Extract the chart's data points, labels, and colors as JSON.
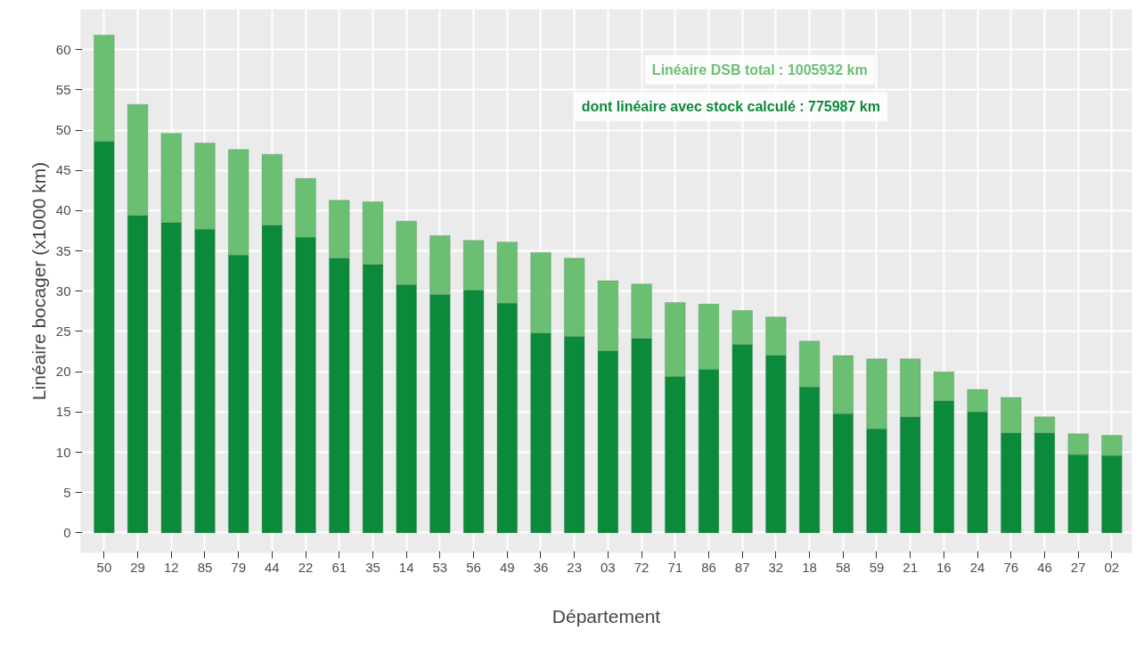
{
  "chart_data": {
    "type": "bar",
    "stacked": true,
    "xlabel": "Département",
    "ylabel": "Linéaire bocager (x1000 km)",
    "categories": [
      "50",
      "29",
      "12",
      "85",
      "79",
      "44",
      "22",
      "61",
      "35",
      "14",
      "53",
      "56",
      "49",
      "36",
      "23",
      "03",
      "72",
      "71",
      "86",
      "87",
      "32",
      "18",
      "58",
      "59",
      "21",
      "16",
      "24",
      "76",
      "46",
      "27",
      "02"
    ],
    "series": [
      {
        "color": "#0b8a3b",
        "values": [
          48.6,
          39.4,
          38.5,
          37.7,
          34.5,
          38.2,
          36.7,
          34.1,
          33.3,
          30.8,
          29.6,
          30.1,
          28.5,
          24.8,
          24.4,
          22.6,
          24.1,
          19.4,
          20.3,
          23.4,
          22.0,
          18.1,
          14.8,
          12.9,
          14.4,
          16.4,
          15.0,
          12.4,
          12.4,
          9.7,
          9.6
        ]
      },
      {
        "color": "#6abf73",
        "values": [
          13.2,
          13.8,
          11.1,
          10.7,
          13.1,
          8.8,
          7.3,
          7.2,
          7.8,
          7.9,
          7.3,
          6.2,
          7.6,
          10.0,
          9.7,
          8.7,
          6.8,
          9.2,
          8.1,
          4.2,
          4.8,
          5.7,
          7.2,
          8.7,
          7.2,
          3.6,
          2.8,
          4.4,
          2.0,
          2.6,
          2.5
        ]
      }
    ],
    "ylim": [
      -2.5,
      65
    ],
    "yticks": [
      0,
      5,
      10,
      15,
      20,
      25,
      30,
      35,
      40,
      45,
      50,
      55,
      60
    ],
    "grid": true,
    "annotations": [
      "Linéaire DSB total : 1005932 km",
      "dont linéaire avec stock calculé : 775987 km"
    ]
  }
}
